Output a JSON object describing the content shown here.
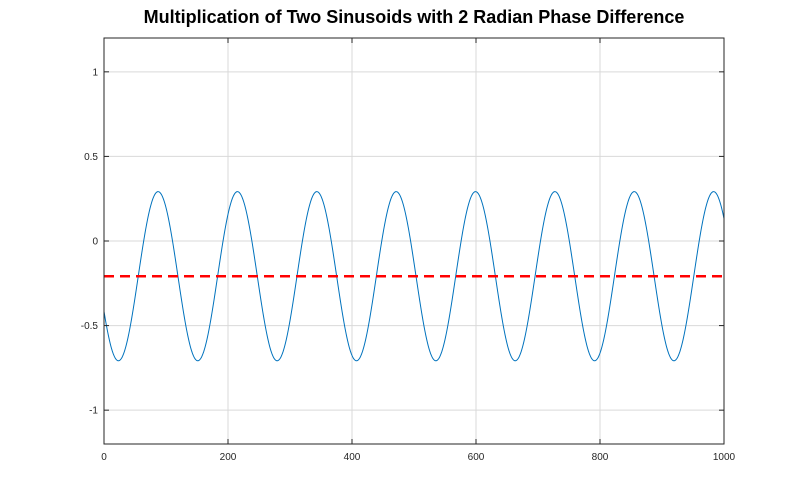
{
  "chart_data": {
    "type": "line",
    "title": "Multiplication of Two Sinusoids with 2 Radian Phase Difference",
    "xlabel": "",
    "ylabel": "",
    "xlim": [
      0,
      1000
    ],
    "ylim": [
      -1.2,
      1.2
    ],
    "xticks": [
      0,
      200,
      400,
      600,
      800,
      1000
    ],
    "yticks": [
      -1,
      -0.5,
      0,
      0.5,
      1
    ],
    "xtick_labels": [
      "0",
      "200",
      "400",
      "600",
      "800",
      "1000"
    ],
    "ytick_labels": [
      "-1",
      "-0.5",
      "0",
      "0.5",
      "1"
    ],
    "grid": true,
    "legend": "none",
    "series": [
      {
        "style": "solid",
        "color": "#0072bd",
        "function": "0.5*cos(2*pi*x/128 + 2) - 0.2081",
        "x_range": [
          0,
          1000
        ],
        "peak_value": 0.2919,
        "trough_value": -0.7081,
        "period": 128
      },
      {
        "style": "dashed",
        "color": "#ff0000",
        "constant_value": -0.2081
      }
    ]
  }
}
